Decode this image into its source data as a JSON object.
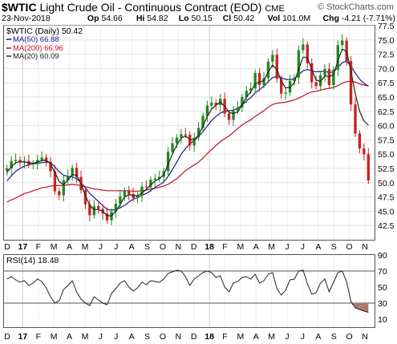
{
  "header": {
    "symbol": "$WTIC",
    "name": "Light Crude Oil - Continuous Contract (EOD)",
    "exchange": "CME",
    "credit": "© StockCharts.com",
    "date": "23-Nov-2018",
    "open_label": "Op",
    "open": "54.66",
    "high_label": "Hi",
    "high": "54.82",
    "low_label": "Lo",
    "low": "50.15",
    "close_label": "Cl",
    "close": "50.42",
    "vol_label": "Vol",
    "vol": "101.0M",
    "chg_label": "Chg",
    "chg": "-4.21 (-7.71%)"
  },
  "legend": {
    "price": "$WTIC (Daily) 50.42",
    "ma50": "MA(50) 66.88",
    "ma200": "MA(200) 66.96",
    "ma20": "MA(20) 60.09"
  },
  "rsi_label": "RSI(14) 18.48",
  "colors": {
    "up": "#1f8a1f",
    "down": "#cc2222",
    "ma50": "#1a1a8c",
    "ma200": "#c0102a",
    "ma20": "#222222",
    "rsi_fill": "#b07a70"
  },
  "chart_data": {
    "type": "candlestick",
    "ylim": [
      40,
      77.5
    ],
    "y_ticks": [
      "77.5",
      "75.0",
      "72.5",
      "70.0",
      "67.5",
      "65.0",
      "62.5",
      "60.0",
      "57.5",
      "55.0",
      "52.5",
      "50.0",
      "47.5",
      "45.0",
      "42.5"
    ],
    "x_labels": [
      "D",
      "17",
      "F",
      "M",
      "A",
      "M",
      "J",
      "J",
      "A",
      "S",
      "O",
      "N",
      "D",
      "18",
      "F",
      "M",
      "A",
      "M",
      "J",
      "J",
      "A",
      "S",
      "O",
      "N"
    ],
    "series": [
      {
        "name": "$WTIC (Daily)",
        "values": [
          52.5,
          53.8,
          54.0,
          53.6,
          53.8,
          53.2,
          53.4,
          54.0,
          54.4,
          53.7,
          52.0,
          48.5,
          47.8,
          50.4,
          51.2,
          52.6,
          51.0,
          48.7,
          46.2,
          44.3,
          45.9,
          45.4,
          44.6,
          43.4,
          44.9,
          46.3,
          47.6,
          48.6,
          48.0,
          47.3,
          47.7,
          49.3,
          49.2,
          50.5,
          50.7,
          51.0,
          52.0,
          55.4,
          56.9,
          57.9,
          58.5,
          58.4,
          56.5,
          57.9,
          59.6,
          61.7,
          63.5,
          64.0,
          63.6,
          64.7,
          62.1,
          61.0,
          62.6,
          63.2,
          65.0,
          66.1,
          66.5,
          69.2,
          67.1,
          68.3,
          71.2,
          72.4,
          68.2,
          65.6,
          65.8,
          67.8,
          68.4,
          73.2,
          74.2,
          70.9,
          67.6,
          66.9,
          68.8,
          69.9,
          67.1,
          69.8,
          74.1,
          74.9,
          71.3,
          63.7,
          58.6,
          56.0,
          55.0,
          50.4
        ]
      },
      {
        "name": "MA(50)",
        "values": [
          50.3,
          51.2,
          52.0,
          52.5,
          52.9,
          53.1,
          53.3,
          53.4,
          53.5,
          53.6,
          53.5,
          52.8,
          51.9,
          51.3,
          51.1,
          51.0,
          50.7,
          50.0,
          49.1,
          48.1,
          47.4,
          46.7,
          46.0,
          45.3,
          45.2,
          45.3,
          45.6,
          46.0,
          46.6,
          47.1,
          47.4,
          47.8,
          48.1,
          48.6,
          49.2,
          49.6,
          50.1,
          51.1,
          52.3,
          53.6,
          55.0,
          56.0,
          56.8,
          57.4,
          58.1,
          58.9,
          59.9,
          60.9,
          61.6,
          62.2,
          62.5,
          62.6,
          62.7,
          63.0,
          63.6,
          64.3,
          64.9,
          65.7,
          66.3,
          66.9,
          67.7,
          68.4,
          68.6,
          68.4,
          68.1,
          68.0,
          68.2,
          68.9,
          69.6,
          69.8,
          69.6,
          69.4,
          69.5,
          69.5,
          69.3,
          69.4,
          70.2,
          71.0,
          71.3,
          70.4,
          69.2,
          68.1,
          67.4,
          66.9
        ]
      },
      {
        "name": "MA(200)",
        "values": [
          46.6,
          47.0,
          47.3,
          47.7,
          48.1,
          48.3,
          48.6,
          48.8,
          49.1,
          49.2,
          49.4,
          49.5,
          49.5,
          49.5,
          49.6,
          49.7,
          49.6,
          49.5,
          49.3,
          49.1,
          48.9,
          48.8,
          48.7,
          48.6,
          48.6,
          48.6,
          48.6,
          48.6,
          48.6,
          48.5,
          48.5,
          48.6,
          48.7,
          48.9,
          49.0,
          49.2,
          49.4,
          49.7,
          50.2,
          50.7,
          51.4,
          52.1,
          52.6,
          53.1,
          53.6,
          54.3,
          55.1,
          55.8,
          56.5,
          57.2,
          57.7,
          58.2,
          58.8,
          59.5,
          60.1,
          60.6,
          61.0,
          61.6,
          62.1,
          62.6,
          63.2,
          63.7,
          63.9,
          64.0,
          64.1,
          64.3,
          64.5,
          64.8,
          65.2,
          65.6,
          65.9,
          66.0,
          66.2,
          66.4,
          66.5,
          66.7,
          67.0,
          67.4,
          67.7,
          67.8,
          67.6,
          67.3,
          67.1,
          66.96
        ]
      },
      {
        "name": "MA(20)",
        "values": [
          51.8,
          52.8,
          53.5,
          53.7,
          53.6,
          53.5,
          53.4,
          53.6,
          53.9,
          53.9,
          53.3,
          51.8,
          50.2,
          49.6,
          50.5,
          51.4,
          51.3,
          49.8,
          47.8,
          46.0,
          45.3,
          45.3,
          45.0,
          44.2,
          44.2,
          45.0,
          46.2,
          47.5,
          47.9,
          47.8,
          47.7,
          48.2,
          48.8,
          49.6,
          50.3,
          50.7,
          51.4,
          53.2,
          55.0,
          56.6,
          57.8,
          58.2,
          57.6,
          57.5,
          58.3,
          59.9,
          61.6,
          62.9,
          63.6,
          64.1,
          63.4,
          62.3,
          62.1,
          62.4,
          63.6,
          65.0,
          65.9,
          67.3,
          67.6,
          67.9,
          69.4,
          70.6,
          69.8,
          67.8,
          66.6,
          66.7,
          67.5,
          69.9,
          72.0,
          71.9,
          69.8,
          68.0,
          67.7,
          68.7,
          68.6,
          68.9,
          71.4,
          73.4,
          73.0,
          69.5,
          65.6,
          62.5,
          60.8,
          60.09
        ]
      }
    ],
    "rsi": {
      "ylim": [
        0,
        90
      ],
      "y_ticks": [
        "90",
        "70",
        "50",
        "30",
        "10"
      ],
      "reference_lines": [
        70,
        30
      ],
      "values": [
        60,
        63,
        59,
        56,
        58,
        52,
        55,
        60,
        57,
        49,
        38,
        30,
        33,
        47,
        52,
        58,
        44,
        35,
        30,
        27,
        38,
        34,
        30,
        28,
        42,
        48,
        55,
        58,
        50,
        45,
        49,
        56,
        53,
        58,
        57,
        56,
        60,
        67,
        69,
        71,
        70,
        63,
        52,
        60,
        64,
        68,
        70,
        68,
        62,
        64,
        50,
        44,
        55,
        57,
        62,
        63,
        60,
        66,
        55,
        58,
        66,
        68,
        48,
        40,
        46,
        59,
        60,
        70,
        71,
        54,
        41,
        43,
        55,
        60,
        44,
        56,
        68,
        70,
        57,
        32,
        24,
        22,
        20,
        18.48
      ]
    }
  }
}
